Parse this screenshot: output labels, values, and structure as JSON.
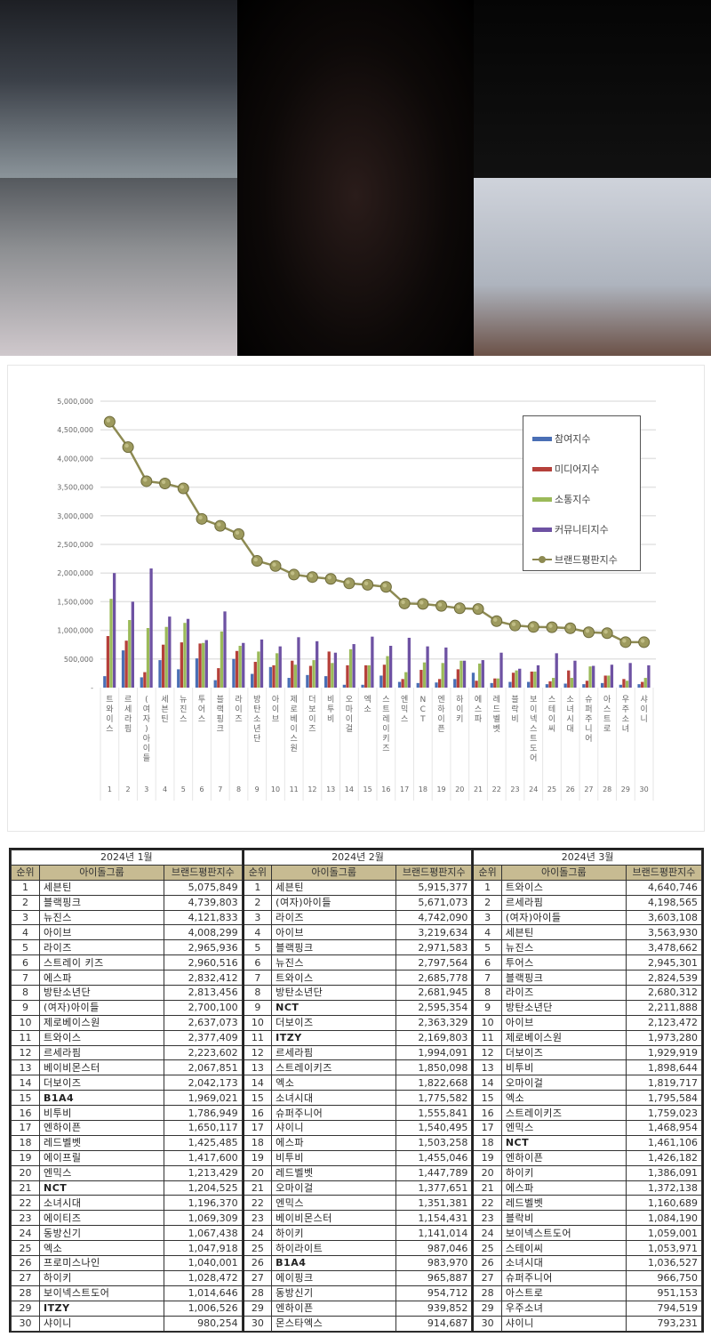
{
  "collage": {
    "photos": [
      {
        "id": "p1",
        "description": "girl group photo (top-left)"
      },
      {
        "id": "p2",
        "description": "girl group photo (bottom-left)"
      },
      {
        "id": "p3",
        "description": "girl group photo (center)"
      },
      {
        "id": "p4",
        "description": "girl group photo (top-right)"
      },
      {
        "id": "p5",
        "description": "boy group photo (bottom-right)"
      }
    ]
  },
  "chart_data": {
    "type": "bar",
    "title": "",
    "xlabel": "",
    "ylabel": "",
    "ylim": [
      0,
      5000000
    ],
    "yticks": [
      "-",
      "500,000",
      "1,000,000",
      "1,500,000",
      "2,000,000",
      "2,500,000",
      "3,000,000",
      "3,500,000",
      "4,000,000",
      "4,500,000",
      "5,000,000"
    ],
    "grid": true,
    "legend_position": "upper-right",
    "categories": [
      "트와이스",
      "르세라핌",
      "(여자)아이들",
      "세븐틴",
      "뉴진스",
      "투어스",
      "블랙핑크",
      "라이즈",
      "방탄소년단",
      "아이브",
      "제로베이스원",
      "더보이즈",
      "비투비",
      "오마이걸",
      "엑소",
      "스트레이키즈",
      "엔믹스",
      "NCT",
      "엔하이픈",
      "하이키",
      "에스파",
      "레드벨벳",
      "블락비",
      "보이넥스트도어",
      "스테이씨",
      "소녀시대",
      "슈퍼주니어",
      "아스트로",
      "우주소녀",
      "샤이니"
    ],
    "category_numbers": [
      "1",
      "2",
      "3",
      "4",
      "5",
      "6",
      "7",
      "8",
      "9",
      "10",
      "11",
      "12",
      "13",
      "14",
      "15",
      "16",
      "17",
      "18",
      "19",
      "20",
      "21",
      "22",
      "23",
      "24",
      "25",
      "26",
      "27",
      "28",
      "29",
      "30"
    ],
    "series": [
      {
        "name": "참여지수",
        "color": "#4a6fb5",
        "kind": "bar",
        "values": [
          200000,
          650000,
          180000,
          480000,
          320000,
          510000,
          130000,
          500000,
          240000,
          360000,
          170000,
          220000,
          200000,
          50000,
          50000,
          210000,
          100000,
          80000,
          90000,
          150000,
          260000,
          80000,
          100000,
          100000,
          60000,
          70000,
          60000,
          80000,
          50000,
          60000
        ]
      },
      {
        "name": "미디어지수",
        "color": "#b5403a",
        "kind": "bar",
        "values": [
          900000,
          820000,
          270000,
          750000,
          790000,
          770000,
          340000,
          640000,
          450000,
          390000,
          470000,
          380000,
          630000,
          390000,
          390000,
          400000,
          150000,
          310000,
          150000,
          320000,
          120000,
          160000,
          260000,
          280000,
          110000,
          300000,
          120000,
          210000,
          150000,
          100000
        ]
      },
      {
        "name": "소통지수",
        "color": "#9bba59",
        "kind": "bar",
        "values": [
          1550000,
          1180000,
          1040000,
          1060000,
          1130000,
          780000,
          980000,
          730000,
          630000,
          600000,
          400000,
          480000,
          430000,
          670000,
          390000,
          550000,
          270000,
          440000,
          430000,
          470000,
          420000,
          160000,
          300000,
          280000,
          170000,
          170000,
          370000,
          210000,
          120000,
          170000
        ]
      },
      {
        "name": "커뮤니티지수",
        "color": "#6e52a3",
        "kind": "bar",
        "values": [
          2000000,
          1500000,
          2080000,
          1240000,
          1200000,
          830000,
          1330000,
          780000,
          840000,
          720000,
          880000,
          810000,
          610000,
          760000,
          890000,
          730000,
          870000,
          720000,
          700000,
          470000,
          480000,
          610000,
          330000,
          390000,
          600000,
          470000,
          380000,
          400000,
          430000,
          390000
        ]
      },
      {
        "name": "브랜드평판지수",
        "color": "#8d8a52",
        "kind": "line",
        "values": [
          4640746,
          4198565,
          3603108,
          3563930,
          3478662,
          2945301,
          2824539,
          2680312,
          2211888,
          2123472,
          1973280,
          1929919,
          1898644,
          1819717,
          1795584,
          1759023,
          1468954,
          1461106,
          1426182,
          1386091,
          1372138,
          1160689,
          1084190,
          1059001,
          1053971,
          1036527,
          966750,
          951153,
          794519,
          793231
        ]
      }
    ]
  },
  "legend": {
    "items": [
      "참여지수",
      "미디어지수",
      "소통지수",
      "커뮤니티지수",
      "브랜드평판지수"
    ]
  },
  "tables": {
    "headers": {
      "rank": "순위",
      "group": "아이돌그룹",
      "score": "브랜드평판지수"
    },
    "months": [
      {
        "title": "2024년 1월",
        "rows": [
          {
            "rank": "1",
            "name": "세븐틴",
            "score": "5,075,849"
          },
          {
            "rank": "2",
            "name": "블랙핑크",
            "score": "4,739,803"
          },
          {
            "rank": "3",
            "name": "뉴진스",
            "score": "4,121,833"
          },
          {
            "rank": "4",
            "name": "아이브",
            "score": "4,008,299"
          },
          {
            "rank": "5",
            "name": "라이즈",
            "score": "2,965,936"
          },
          {
            "rank": "6",
            "name": "스트레이 키즈",
            "score": "2,960,516"
          },
          {
            "rank": "7",
            "name": "에스파",
            "score": "2,832,412"
          },
          {
            "rank": "8",
            "name": "방탄소년단",
            "score": "2,813,456"
          },
          {
            "rank": "9",
            "name": "(여자)아이들",
            "score": "2,700,100"
          },
          {
            "rank": "10",
            "name": "제로베이스원",
            "score": "2,637,073"
          },
          {
            "rank": "11",
            "name": "트와이스",
            "score": "2,377,409"
          },
          {
            "rank": "12",
            "name": "르세라핌",
            "score": "2,223,602"
          },
          {
            "rank": "13",
            "name": "베이비몬스터",
            "score": "2,067,851"
          },
          {
            "rank": "14",
            "name": "더보이즈",
            "score": "2,042,173"
          },
          {
            "rank": "15",
            "name": "B1A4",
            "score": "1,969,021"
          },
          {
            "rank": "16",
            "name": "비투비",
            "score": "1,786,949"
          },
          {
            "rank": "17",
            "name": "엔하이픈",
            "score": "1,650,117"
          },
          {
            "rank": "18",
            "name": "레드벨벳",
            "score": "1,425,485"
          },
          {
            "rank": "19",
            "name": "에이프릴",
            "score": "1,417,600"
          },
          {
            "rank": "20",
            "name": "엔믹스",
            "score": "1,213,429"
          },
          {
            "rank": "21",
            "name": "NCT",
            "score": "1,204,525"
          },
          {
            "rank": "22",
            "name": "소녀시대",
            "score": "1,196,370"
          },
          {
            "rank": "23",
            "name": "에이티즈",
            "score": "1,069,309"
          },
          {
            "rank": "24",
            "name": "동방신기",
            "score": "1,067,438"
          },
          {
            "rank": "25",
            "name": "엑소",
            "score": "1,047,918"
          },
          {
            "rank": "26",
            "name": "프로미스나인",
            "score": "1,040,001"
          },
          {
            "rank": "27",
            "name": "하이키",
            "score": "1,028,472"
          },
          {
            "rank": "28",
            "name": "보이넥스트도어",
            "score": "1,014,646"
          },
          {
            "rank": "29",
            "name": "ITZY",
            "score": "1,006,526"
          },
          {
            "rank": "30",
            "name": "샤이니",
            "score": "980,254"
          }
        ]
      },
      {
        "title": "2024년 2월",
        "rows": [
          {
            "rank": "1",
            "name": "세븐틴",
            "score": "5,915,377"
          },
          {
            "rank": "2",
            "name": "(여자)아이들",
            "score": "5,671,073"
          },
          {
            "rank": "3",
            "name": "라이즈",
            "score": "4,742,090"
          },
          {
            "rank": "4",
            "name": "아이브",
            "score": "3,219,634"
          },
          {
            "rank": "5",
            "name": "블랙핑크",
            "score": "2,971,583"
          },
          {
            "rank": "6",
            "name": "뉴진스",
            "score": "2,797,564"
          },
          {
            "rank": "7",
            "name": "트와이스",
            "score": "2,685,778"
          },
          {
            "rank": "8",
            "name": "방탄소년단",
            "score": "2,681,945"
          },
          {
            "rank": "9",
            "name": "NCT",
            "score": "2,595,354"
          },
          {
            "rank": "10",
            "name": "더보이즈",
            "score": "2,363,329"
          },
          {
            "rank": "11",
            "name": "ITZY",
            "score": "2,169,803"
          },
          {
            "rank": "12",
            "name": "르세라핌",
            "score": "1,994,091"
          },
          {
            "rank": "13",
            "name": "스트레이키즈",
            "score": "1,850,098"
          },
          {
            "rank": "14",
            "name": "엑소",
            "score": "1,822,668"
          },
          {
            "rank": "15",
            "name": "소녀시대",
            "score": "1,775,582"
          },
          {
            "rank": "16",
            "name": "슈퍼주니어",
            "score": "1,555,841"
          },
          {
            "rank": "17",
            "name": "샤이니",
            "score": "1,540,495"
          },
          {
            "rank": "18",
            "name": "에스파",
            "score": "1,503,258"
          },
          {
            "rank": "19",
            "name": "비투비",
            "score": "1,455,046"
          },
          {
            "rank": "20",
            "name": "레드벨벳",
            "score": "1,447,789"
          },
          {
            "rank": "21",
            "name": "오마이걸",
            "score": "1,377,651"
          },
          {
            "rank": "22",
            "name": "엔믹스",
            "score": "1,351,381"
          },
          {
            "rank": "23",
            "name": "베이비몬스터",
            "score": "1,154,431"
          },
          {
            "rank": "24",
            "name": "하이키",
            "score": "1,141,014"
          },
          {
            "rank": "25",
            "name": "하이라이트",
            "score": "987,046"
          },
          {
            "rank": "26",
            "name": "B1A4",
            "score": "983,970"
          },
          {
            "rank": "27",
            "name": "에이핑크",
            "score": "965,887"
          },
          {
            "rank": "28",
            "name": "동방신기",
            "score": "954,712"
          },
          {
            "rank": "29",
            "name": "엔하이픈",
            "score": "939,852"
          },
          {
            "rank": "30",
            "name": "몬스타엑스",
            "score": "914,687"
          }
        ]
      },
      {
        "title": "2024년 3월",
        "rows": [
          {
            "rank": "1",
            "name": "트와이스",
            "score": "4,640,746"
          },
          {
            "rank": "2",
            "name": "르세라핌",
            "score": "4,198,565"
          },
          {
            "rank": "3",
            "name": "(여자)아이들",
            "score": "3,603,108"
          },
          {
            "rank": "4",
            "name": "세븐틴",
            "score": "3,563,930"
          },
          {
            "rank": "5",
            "name": "뉴진스",
            "score": "3,478,662"
          },
          {
            "rank": "6",
            "name": "투어스",
            "score": "2,945,301"
          },
          {
            "rank": "7",
            "name": "블랙핑크",
            "score": "2,824,539"
          },
          {
            "rank": "8",
            "name": "라이즈",
            "score": "2,680,312"
          },
          {
            "rank": "9",
            "name": "방탄소년단",
            "score": "2,211,888"
          },
          {
            "rank": "10",
            "name": "아이브",
            "score": "2,123,472"
          },
          {
            "rank": "11",
            "name": "제로베이스원",
            "score": "1,973,280"
          },
          {
            "rank": "12",
            "name": "더보이즈",
            "score": "1,929,919"
          },
          {
            "rank": "13",
            "name": "비투비",
            "score": "1,898,644"
          },
          {
            "rank": "14",
            "name": "오마이걸",
            "score": "1,819,717"
          },
          {
            "rank": "15",
            "name": "엑소",
            "score": "1,795,584"
          },
          {
            "rank": "16",
            "name": "스트레이키즈",
            "score": "1,759,023"
          },
          {
            "rank": "17",
            "name": "엔믹스",
            "score": "1,468,954"
          },
          {
            "rank": "18",
            "name": "NCT",
            "score": "1,461,106"
          },
          {
            "rank": "19",
            "name": "엔하이픈",
            "score": "1,426,182"
          },
          {
            "rank": "20",
            "name": "하이키",
            "score": "1,386,091"
          },
          {
            "rank": "21",
            "name": "에스파",
            "score": "1,372,138"
          },
          {
            "rank": "22",
            "name": "레드벨벳",
            "score": "1,160,689"
          },
          {
            "rank": "23",
            "name": "블락비",
            "score": "1,084,190"
          },
          {
            "rank": "24",
            "name": "보이넥스트도어",
            "score": "1,059,001"
          },
          {
            "rank": "25",
            "name": "스테이씨",
            "score": "1,053,971"
          },
          {
            "rank": "26",
            "name": "소녀시대",
            "score": "1,036,527"
          },
          {
            "rank": "27",
            "name": "슈퍼주니어",
            "score": "966,750"
          },
          {
            "rank": "28",
            "name": "아스트로",
            "score": "951,153"
          },
          {
            "rank": "29",
            "name": "우주소녀",
            "score": "794,519"
          },
          {
            "rank": "30",
            "name": "샤이니",
            "score": "793,231"
          }
        ]
      }
    ]
  }
}
